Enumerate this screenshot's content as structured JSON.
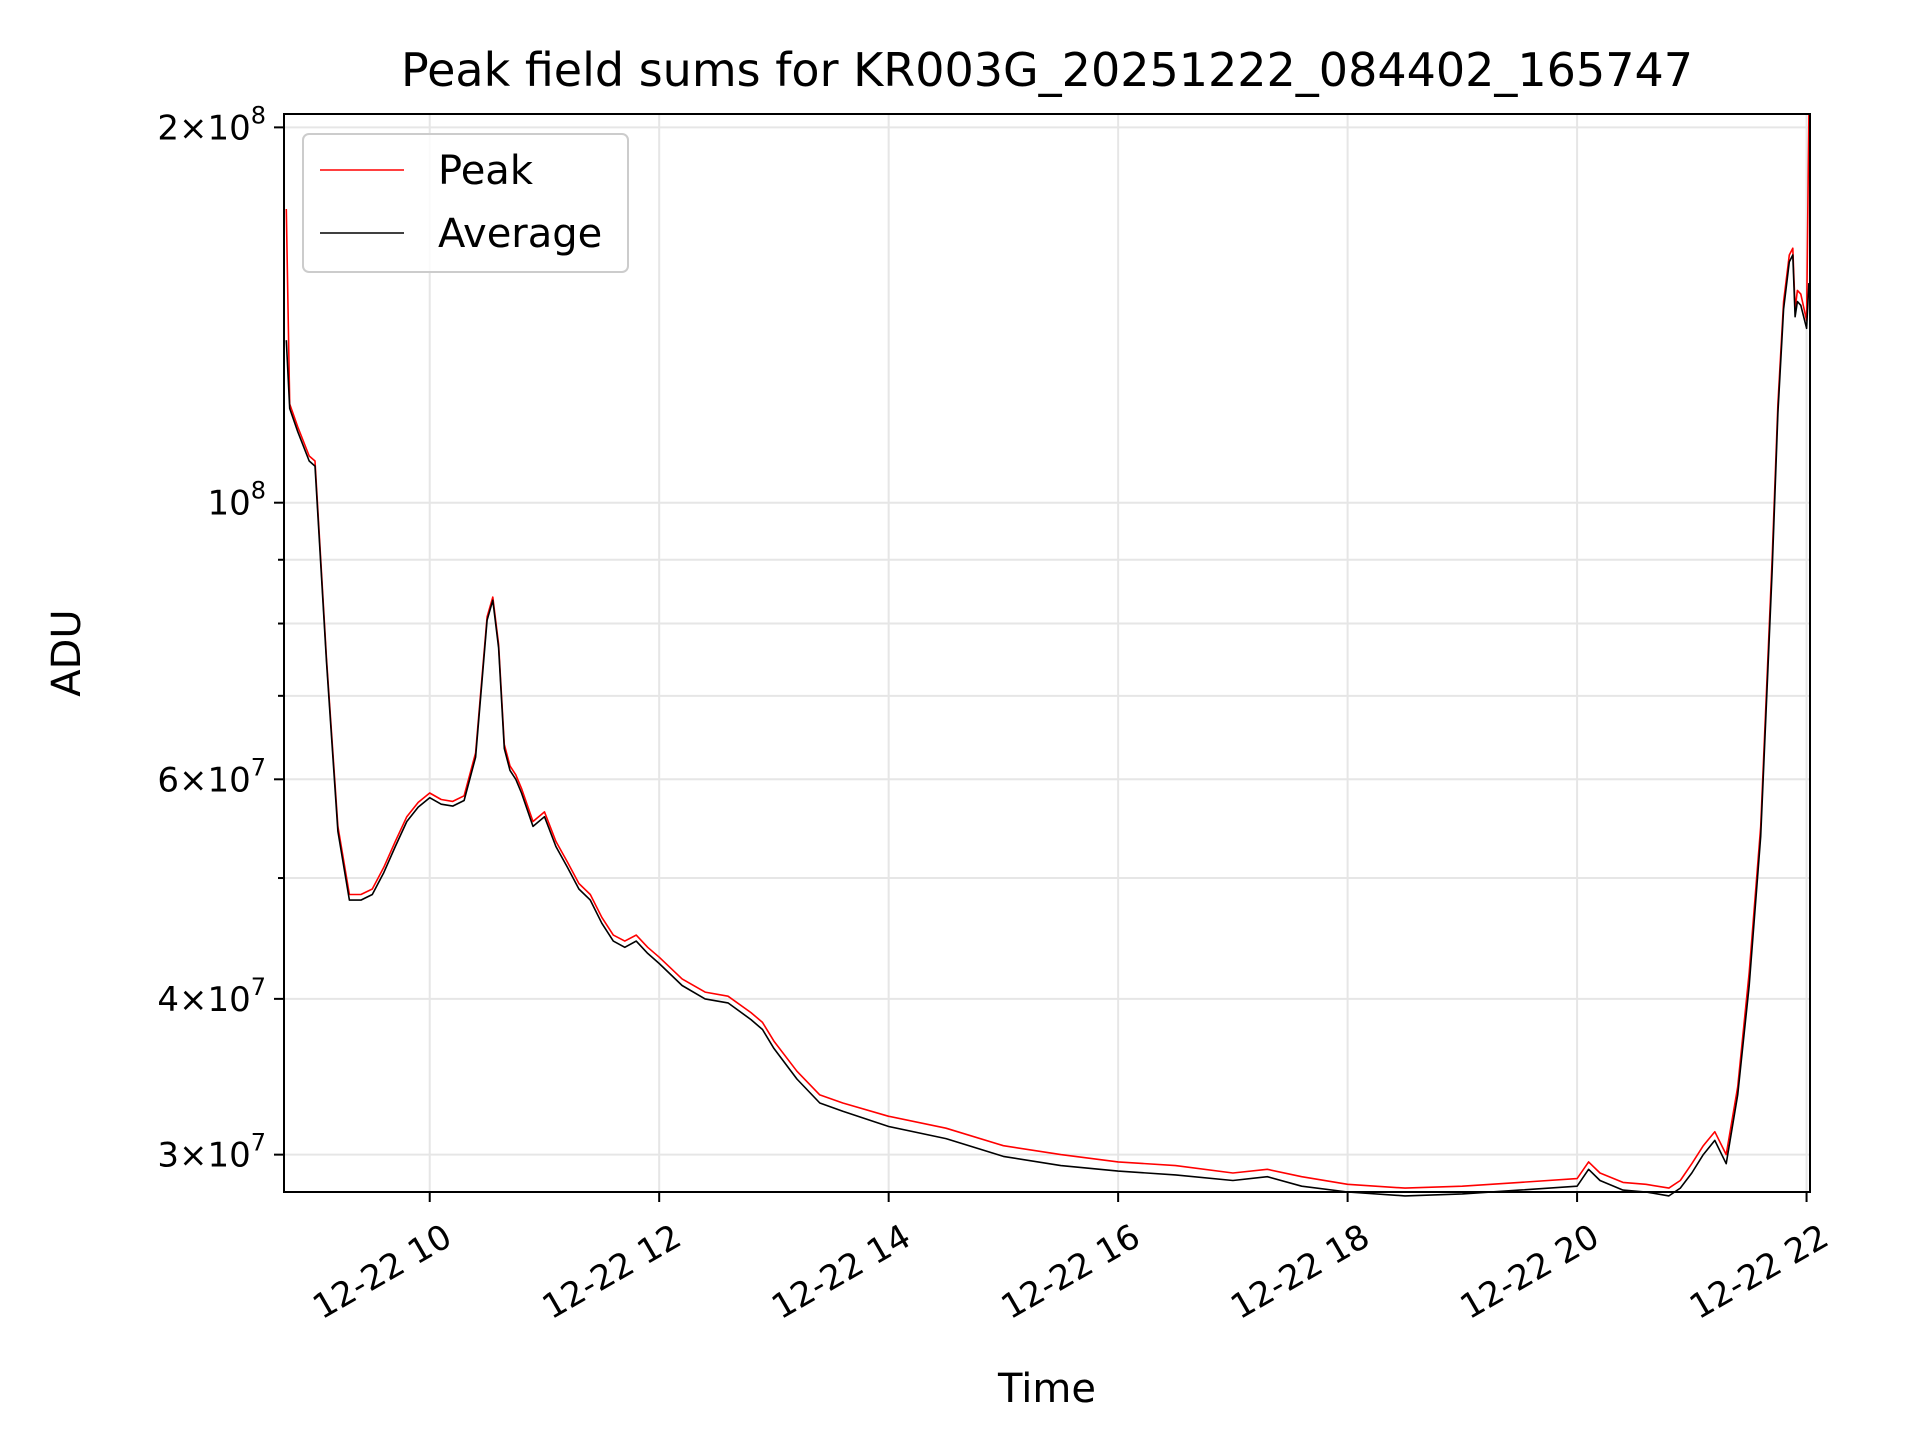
{
  "chart_data": {
    "type": "line",
    "title": "Peak field sums for KR003G_20251222_084402_165747",
    "xlabel": "Time",
    "ylabel": "ADU",
    "yscale": "log",
    "x_unit": "hours (2025-12-22)",
    "xlim": [
      8.73,
      22.03
    ],
    "ylim": [
      28000000,
      205000000
    ],
    "grid": true,
    "legend_position": "upper-left",
    "x_ticks": [
      {
        "value": 10,
        "label": "12-22 10"
      },
      {
        "value": 12,
        "label": "12-22 12"
      },
      {
        "value": 14,
        "label": "12-22 14"
      },
      {
        "value": 16,
        "label": "12-22 16"
      },
      {
        "value": 18,
        "label": "12-22 18"
      },
      {
        "value": 20,
        "label": "12-22 20"
      },
      {
        "value": 22,
        "label": "12-22 22"
      }
    ],
    "y_major_ticks": [
      {
        "value": 30000000,
        "mantissa": "3",
        "exp": "7"
      },
      {
        "value": 40000000,
        "mantissa": "4",
        "exp": "7"
      },
      {
        "value": 60000000,
        "mantissa": "6",
        "exp": "7"
      },
      {
        "value": 100000000,
        "mantissa": "",
        "exp": "8"
      },
      {
        "value": 200000000,
        "mantissa": "2",
        "exp": "8"
      }
    ],
    "y_minor_ticks": [
      50000000,
      70000000,
      80000000,
      90000000
    ],
    "series": [
      {
        "name": "Peak",
        "color": "#ff0000",
        "x": [
          8.75,
          8.78,
          8.85,
          8.95,
          9.0,
          9.1,
          9.2,
          9.3,
          9.4,
          9.5,
          9.6,
          9.7,
          9.8,
          9.9,
          10.0,
          10.1,
          10.2,
          10.3,
          10.4,
          10.5,
          10.55,
          10.6,
          10.65,
          10.7,
          10.75,
          10.8,
          10.9,
          11.0,
          11.1,
          11.2,
          11.3,
          11.4,
          11.5,
          11.6,
          11.7,
          11.8,
          11.9,
          12.0,
          12.2,
          12.4,
          12.6,
          12.8,
          12.9,
          13.0,
          13.2,
          13.4,
          13.6,
          14.0,
          14.5,
          15.0,
          15.5,
          16.0,
          16.5,
          17.0,
          17.3,
          17.6,
          18.0,
          18.5,
          19.0,
          19.5,
          20.0,
          20.1,
          20.2,
          20.4,
          20.6,
          20.8,
          20.9,
          21.0,
          21.1,
          21.2,
          21.3,
          21.4,
          21.5,
          21.6,
          21.7,
          21.75,
          21.8,
          21.85,
          21.88,
          21.9,
          21.92,
          21.95,
          22.0,
          22.02
        ],
        "values": [
          172000000,
          120000000,
          115000000,
          109000000,
          108000000,
          75000000,
          55000000,
          48500000,
          48500000,
          49000000,
          51000000,
          53500000,
          56000000,
          57500000,
          58500000,
          57800000,
          57600000,
          58200000,
          63000000,
          81000000,
          84000000,
          77000000,
          64000000,
          61500000,
          60500000,
          59000000,
          55500000,
          56500000,
          53500000,
          51500000,
          49500000,
          48500000,
          46500000,
          45000000,
          44500000,
          45000000,
          44000000,
          43200000,
          41500000,
          40500000,
          40200000,
          39000000,
          38300000,
          37000000,
          35000000,
          33500000,
          33000000,
          32200000,
          31500000,
          30500000,
          30000000,
          29600000,
          29400000,
          29000000,
          29200000,
          28800000,
          28400000,
          28200000,
          28300000,
          28500000,
          28700000,
          29600000,
          29000000,
          28500000,
          28400000,
          28200000,
          28600000,
          29500000,
          30500000,
          31300000,
          30000000,
          34000000,
          42000000,
          55000000,
          90000000,
          120000000,
          145000000,
          158000000,
          160000000,
          143000000,
          148000000,
          147000000,
          140000000,
          205000000
        ]
      },
      {
        "name": "Average",
        "color": "#000000",
        "x": [
          8.75,
          8.78,
          8.85,
          8.95,
          9.0,
          9.1,
          9.2,
          9.3,
          9.4,
          9.5,
          9.6,
          9.7,
          9.8,
          9.9,
          10.0,
          10.1,
          10.2,
          10.3,
          10.4,
          10.5,
          10.55,
          10.6,
          10.65,
          10.7,
          10.75,
          10.8,
          10.9,
          11.0,
          11.1,
          11.2,
          11.3,
          11.4,
          11.5,
          11.6,
          11.7,
          11.8,
          11.9,
          12.0,
          12.2,
          12.4,
          12.6,
          12.8,
          12.9,
          13.0,
          13.2,
          13.4,
          13.6,
          14.0,
          14.5,
          15.0,
          15.5,
          16.0,
          16.5,
          17.0,
          17.3,
          17.6,
          18.0,
          18.5,
          19.0,
          19.5,
          20.0,
          20.1,
          20.2,
          20.4,
          20.6,
          20.8,
          20.9,
          21.0,
          21.1,
          21.2,
          21.3,
          21.4,
          21.5,
          21.6,
          21.7,
          21.75,
          21.8,
          21.85,
          21.88,
          21.9,
          21.92,
          21.95,
          22.0,
          22.02
        ],
        "values": [
          135000000,
          119000000,
          114000000,
          108000000,
          107000000,
          74500000,
          54500000,
          48000000,
          48000000,
          48500000,
          50500000,
          53000000,
          55500000,
          57000000,
          58000000,
          57300000,
          57100000,
          57700000,
          62500000,
          80500000,
          83500000,
          76500000,
          63500000,
          61000000,
          60000000,
          58500000,
          55000000,
          56000000,
          53000000,
          51000000,
          49000000,
          48000000,
          46000000,
          44500000,
          44000000,
          44500000,
          43500000,
          42700000,
          41000000,
          40000000,
          39700000,
          38500000,
          37800000,
          36500000,
          34500000,
          33000000,
          32500000,
          31600000,
          30900000,
          29900000,
          29400000,
          29100000,
          28900000,
          28600000,
          28800000,
          28300000,
          28000000,
          27800000,
          27900000,
          28100000,
          28300000,
          29200000,
          28600000,
          28100000,
          28000000,
          27800000,
          28200000,
          29000000,
          30000000,
          30800000,
          29500000,
          33500000,
          41000000,
          54000000,
          88000000,
          118000000,
          143000000,
          156000000,
          158000000,
          141000000,
          145000000,
          144000000,
          138000000,
          150000000
        ]
      }
    ]
  }
}
